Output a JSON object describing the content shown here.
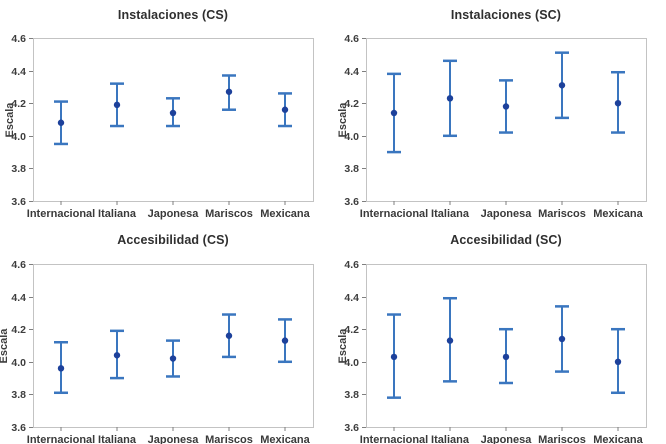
{
  "page": {
    "background": "#ffffff",
    "description": "2x2 panel of interval plots of mean scale scores with confidence-interval error bars by restaurant type"
  },
  "colors": {
    "interval_bar": "#3a76bf",
    "mean_point": "#1d419b",
    "plot_border": "#c3c3c3",
    "tick_mark": "#7f7f7f",
    "text": "#3d3d3d"
  },
  "chart_data": [
    {
      "type": "errorbar",
      "title": "Instalaciones (CS)",
      "ylabel": "Escala",
      "xlabel": "",
      "ylim": [
        3.6,
        4.6
      ],
      "yticks": [
        4.6,
        4.4,
        4.2,
        4.0,
        3.8,
        3.6
      ],
      "grid": false,
      "legend": "none",
      "categories": [
        "Internacional",
        "Italiana",
        "Japonesa",
        "Mariscos",
        "Mexicana"
      ],
      "points": [
        {
          "category": "Internacional",
          "mean": 4.08,
          "ci_low": 3.95,
          "ci_high": 4.21
        },
        {
          "category": "Italiana",
          "mean": 4.19,
          "ci_low": 4.06,
          "ci_high": 4.32
        },
        {
          "category": "Japonesa",
          "mean": 4.14,
          "ci_low": 4.06,
          "ci_high": 4.23
        },
        {
          "category": "Mariscos",
          "mean": 4.27,
          "ci_low": 4.16,
          "ci_high": 4.37
        },
        {
          "category": "Mexicana",
          "mean": 4.16,
          "ci_low": 4.06,
          "ci_high": 4.26
        }
      ]
    },
    {
      "type": "errorbar",
      "title": "Instalaciones (SC)",
      "ylabel": "Escala",
      "xlabel": "",
      "ylim": [
        3.6,
        4.6
      ],
      "yticks": [
        4.6,
        4.4,
        4.2,
        4.0,
        3.8,
        3.6
      ],
      "grid": false,
      "legend": "none",
      "categories": [
        "Internacional",
        "Italiana",
        "Japonesa",
        "Mariscos",
        "Mexicana"
      ],
      "points": [
        {
          "category": "Internacional",
          "mean": 4.14,
          "ci_low": 3.9,
          "ci_high": 4.38
        },
        {
          "category": "Italiana",
          "mean": 4.23,
          "ci_low": 4.0,
          "ci_high": 4.46
        },
        {
          "category": "Japonesa",
          "mean": 4.18,
          "ci_low": 4.02,
          "ci_high": 4.34
        },
        {
          "category": "Mariscos",
          "mean": 4.31,
          "ci_low": 4.11,
          "ci_high": 4.51
        },
        {
          "category": "Mexicana",
          "mean": 4.2,
          "ci_low": 4.02,
          "ci_high": 4.39
        }
      ]
    },
    {
      "type": "errorbar",
      "title": "Accesibilidad (CS)",
      "ylabel": "Escala",
      "xlabel": "",
      "ylim": [
        3.6,
        4.6
      ],
      "yticks": [
        4.6,
        4.4,
        4.2,
        4.0,
        3.8,
        3.6
      ],
      "grid": false,
      "legend": "none",
      "categories": [
        "Internacional",
        "Italiana",
        "Japonesa",
        "Mariscos",
        "Mexicana"
      ],
      "points": [
        {
          "category": "Internacional",
          "mean": 3.96,
          "ci_low": 3.81,
          "ci_high": 4.12
        },
        {
          "category": "Italiana",
          "mean": 4.04,
          "ci_low": 3.9,
          "ci_high": 4.19
        },
        {
          "category": "Japonesa",
          "mean": 4.02,
          "ci_low": 3.91,
          "ci_high": 4.13
        },
        {
          "category": "Mariscos",
          "mean": 4.16,
          "ci_low": 4.03,
          "ci_high": 4.29
        },
        {
          "category": "Mexicana",
          "mean": 4.13,
          "ci_low": 4.0,
          "ci_high": 4.26
        }
      ]
    },
    {
      "type": "errorbar",
      "title": "Accesibilidad (SC)",
      "ylabel": "Escala",
      "xlabel": "",
      "ylim": [
        3.6,
        4.6
      ],
      "yticks": [
        4.6,
        4.4,
        4.2,
        4.0,
        3.8,
        3.6
      ],
      "grid": false,
      "legend": "none",
      "categories": [
        "Internacional",
        "Italiana",
        "Japonesa",
        "Mariscos",
        "Mexicana"
      ],
      "points": [
        {
          "category": "Internacional",
          "mean": 4.03,
          "ci_low": 3.78,
          "ci_high": 4.29
        },
        {
          "category": "Italiana",
          "mean": 4.13,
          "ci_low": 3.88,
          "ci_high": 4.39
        },
        {
          "category": "Japonesa",
          "mean": 4.03,
          "ci_low": 3.87,
          "ci_high": 4.2
        },
        {
          "category": "Mariscos",
          "mean": 4.14,
          "ci_low": 3.94,
          "ci_high": 4.34
        },
        {
          "category": "Mexicana",
          "mean": 4.0,
          "ci_low": 3.81,
          "ci_high": 4.2
        }
      ]
    }
  ]
}
